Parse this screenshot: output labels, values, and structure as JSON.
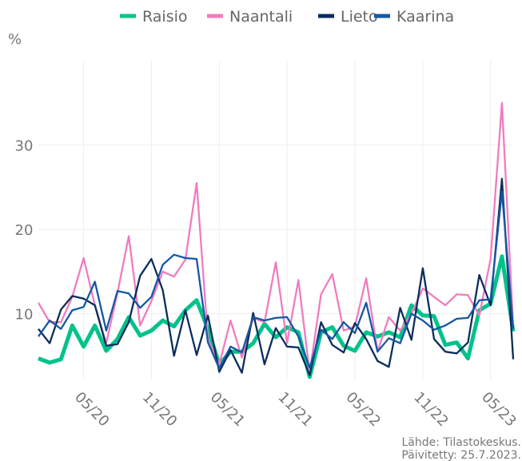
{
  "chart_data": {
    "type": "line",
    "y_label": "%",
    "categories": [
      null,
      null,
      null,
      null,
      "05/20",
      null,
      null,
      null,
      null,
      null,
      "11/20",
      null,
      null,
      null,
      null,
      null,
      "05/21",
      null,
      null,
      null,
      null,
      null,
      "11/21",
      null,
      null,
      null,
      null,
      null,
      "05/22",
      null,
      null,
      null,
      null,
      null,
      "11/22",
      null,
      null,
      null,
      null,
      null,
      "05/23",
      null,
      null
    ],
    "series": [
      {
        "name": "Raisio",
        "color": "#00c28a",
        "values": [
          4.7,
          4.2,
          4.6,
          8.6,
          6.1,
          8.6,
          5.6,
          7,
          9.6,
          7.4,
          8,
          9.2,
          8.5,
          10.4,
          11.6,
          8.2,
          4,
          5.5,
          5.5,
          6.5,
          8.8,
          7.2,
          8.4,
          7.8,
          2.5,
          7.8,
          8.4,
          6.2,
          5.6,
          7.8,
          7.3,
          7.8,
          7.2,
          11,
          9.8,
          9.7,
          6.3,
          6.6,
          4.7,
          10.4,
          11.2,
          16.8,
          7.9
        ]
      },
      {
        "name": "Naantali",
        "color": "#f07cbf",
        "values": [
          11.3,
          9,
          9,
          12,
          16.6,
          11,
          6.5,
          12.5,
          19.2,
          8.6,
          11.5,
          15,
          14.4,
          16.4,
          25.5,
          7,
          4,
          9.2,
          4.8,
          9.5,
          9,
          16.1,
          6.5,
          14,
          3,
          12.3,
          14.7,
          8,
          8.5,
          14.2,
          5.5,
          9.6,
          8,
          10,
          13,
          12,
          11,
          12.3,
          12.2,
          9.8,
          16.5,
          35,
          8.5
        ]
      },
      {
        "name": "Lieto",
        "color": "#0b2d5c",
        "values": [
          8.2,
          6.5,
          10.5,
          12.1,
          11.8,
          11,
          6.2,
          6.4,
          9,
          14.5,
          16.5,
          12.8,
          5,
          10.4,
          5.1,
          9.8,
          3.1,
          5.7,
          3,
          10.1,
          4,
          8.3,
          6.1,
          6,
          2.7,
          9,
          6.3,
          5.4,
          8.9,
          7,
          4.4,
          3.7,
          10.7,
          6.9,
          15.4,
          7,
          5.5,
          5.3,
          6.6,
          14.6,
          11,
          26,
          4.6
        ]
      },
      {
        "name": "Kaarina",
        "color": "#1557a3",
        "values": [
          7.3,
          9.2,
          8.2,
          10.4,
          10.8,
          13.8,
          8,
          12.7,
          12.4,
          10.7,
          12,
          15.8,
          17,
          16.6,
          16.5,
          6.6,
          3.5,
          6.1,
          5.4,
          9.6,
          9.2,
          9.5,
          9.6,
          7.3,
          3.6,
          8.1,
          7,
          9,
          7.7,
          11.3,
          5.5,
          7.1,
          6.5,
          10,
          9.2,
          8.1,
          8.6,
          9.4,
          9.5,
          11.6,
          11.7,
          24.5,
          8.2
        ]
      }
    ],
    "ylim": [
      2.2,
      40
    ],
    "yticks": [
      10,
      20,
      30
    ],
    "grid": true,
    "legend": "top",
    "caption": [
      "Lähde: Tilastokeskus.",
      "Päivitetty: 25.7.2023."
    ]
  }
}
